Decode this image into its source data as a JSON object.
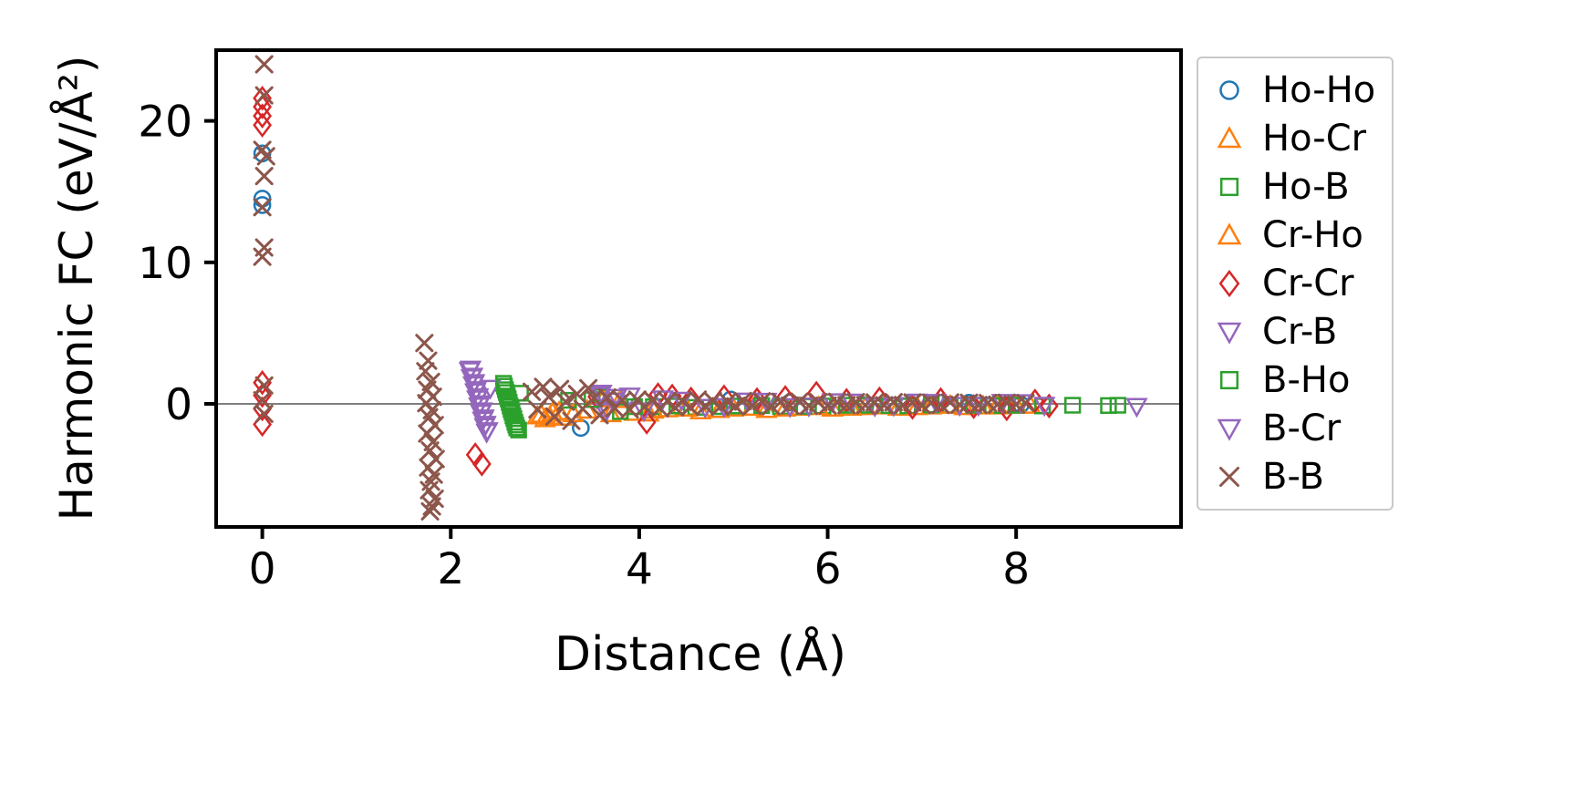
{
  "chart_data": {
    "type": "scatter",
    "title": "",
    "xlabel": "Distance (Å)",
    "ylabel": "Harmonic FC (eV/Å²)",
    "xlim": [
      -0.49,
      9.75
    ],
    "ylim": [
      -8.7,
      25.0
    ],
    "xticks": [
      0,
      2,
      4,
      6,
      8
    ],
    "yticks": [
      0,
      10,
      20
    ],
    "grid": false,
    "zero_line": {
      "y": 0,
      "color": "#7f7f7f",
      "width": 2
    },
    "axis_color": "#000000",
    "background": "#ffffff",
    "legend": {
      "position": "outside-right",
      "border_color": "#c9c9c9",
      "background": "#ffffff"
    },
    "series": [
      {
        "name": "Ho-Ho",
        "marker": "circle",
        "color": "#1f77b4",
        "points": [
          [
            0,
            17.7
          ],
          [
            0,
            14.5
          ],
          [
            0,
            14.05
          ],
          [
            3.38,
            -1.7
          ],
          [
            4.97,
            0.3
          ],
          [
            5.6,
            0.1
          ],
          [
            6.4,
            -0.1
          ],
          [
            7.5,
            0.08
          ],
          [
            8.05,
            -0.05
          ]
        ]
      },
      {
        "name": "Ho-Cr",
        "marker": "triangle-up",
        "color": "#ff7f0e",
        "points": [
          [
            2.92,
            -0.85
          ],
          [
            3.0,
            -1.05
          ],
          [
            3.08,
            -0.6
          ],
          [
            3.18,
            -0.95
          ],
          [
            3.3,
            -0.7
          ],
          [
            3.62,
            0.35
          ],
          [
            3.7,
            -0.7
          ],
          [
            3.95,
            -0.6
          ],
          [
            4.1,
            -0.65
          ],
          [
            4.3,
            -0.35
          ],
          [
            4.65,
            -0.5
          ],
          [
            5.0,
            -0.3
          ],
          [
            5.35,
            -0.4
          ],
          [
            5.7,
            -0.25
          ],
          [
            6.05,
            -0.3
          ],
          [
            6.4,
            -0.2
          ],
          [
            6.75,
            -0.25
          ],
          [
            7.1,
            -0.15
          ],
          [
            7.45,
            -0.2
          ],
          [
            7.8,
            -0.15
          ],
          [
            8.15,
            -0.1
          ]
        ]
      },
      {
        "name": "Ho-B",
        "marker": "square",
        "color": "#2ca02c",
        "points": [
          [
            2.56,
            1.45
          ],
          [
            2.58,
            1.0
          ],
          [
            2.6,
            0.55
          ],
          [
            2.62,
            0.1
          ],
          [
            2.64,
            -0.4
          ],
          [
            2.66,
            -0.85
          ],
          [
            2.68,
            -1.3
          ],
          [
            2.7,
            -1.7
          ],
          [
            2.74,
            0.75
          ],
          [
            3.25,
            0.25
          ],
          [
            3.6,
            0.5
          ],
          [
            3.8,
            -0.55
          ],
          [
            4.15,
            -0.2
          ],
          [
            4.6,
            -0.25
          ],
          [
            5.05,
            -0.15
          ],
          [
            5.5,
            -0.2
          ],
          [
            5.95,
            -0.15
          ],
          [
            6.4,
            -0.1
          ],
          [
            6.85,
            -0.15
          ],
          [
            7.3,
            -0.1
          ],
          [
            7.75,
            -0.12
          ],
          [
            8.28,
            -0.15
          ],
          [
            8.6,
            -0.1
          ]
        ]
      },
      {
        "name": "Cr-Ho",
        "marker": "triangle-up",
        "color": "#ff7f0e",
        "points": [
          [
            2.96,
            -0.75
          ],
          [
            3.05,
            -0.9
          ],
          [
            3.15,
            -0.55
          ],
          [
            3.45,
            -0.45
          ],
          [
            3.8,
            0.3
          ],
          [
            4.15,
            -0.45
          ],
          [
            4.5,
            -0.3
          ],
          [
            4.85,
            -0.4
          ],
          [
            5.2,
            -0.25
          ],
          [
            5.55,
            -0.3
          ],
          [
            5.9,
            -0.2
          ],
          [
            6.25,
            -0.25
          ],
          [
            6.6,
            -0.15
          ],
          [
            6.95,
            -0.2
          ],
          [
            7.3,
            -0.1
          ],
          [
            7.65,
            -0.15
          ],
          [
            8.0,
            -0.1
          ]
        ]
      },
      {
        "name": "Cr-Cr",
        "marker": "diamond",
        "color": "#d62728",
        "points": [
          [
            0,
            21.6
          ],
          [
            0,
            21.0
          ],
          [
            0,
            20.35
          ],
          [
            0,
            19.7
          ],
          [
            0,
            1.5
          ],
          [
            0,
            0.6
          ],
          [
            0,
            -0.35
          ],
          [
            0,
            -1.45
          ],
          [
            2.26,
            -3.6
          ],
          [
            2.33,
            -4.25
          ],
          [
            3.55,
            0.5
          ],
          [
            4.08,
            -1.3
          ],
          [
            4.2,
            0.65
          ],
          [
            4.35,
            0.55
          ],
          [
            4.55,
            0.35
          ],
          [
            4.9,
            0.5
          ],
          [
            5.25,
            0.3
          ],
          [
            5.55,
            0.45
          ],
          [
            5.88,
            0.75
          ],
          [
            6.2,
            0.25
          ],
          [
            6.55,
            0.35
          ],
          [
            6.9,
            -0.25
          ],
          [
            7.2,
            0.3
          ],
          [
            7.55,
            -0.2
          ],
          [
            7.9,
            -0.35
          ],
          [
            8.2,
            0.2
          ],
          [
            8.35,
            -0.15
          ]
        ]
      },
      {
        "name": "Cr-B",
        "marker": "triangle-down",
        "color": "#9467bd",
        "points": [
          [
            2.2,
            2.35
          ],
          [
            2.22,
            1.85
          ],
          [
            2.24,
            1.35
          ],
          [
            2.26,
            0.85
          ],
          [
            2.28,
            0.35
          ],
          [
            2.3,
            -0.15
          ],
          [
            2.32,
            -0.65
          ],
          [
            2.34,
            -1.15
          ],
          [
            2.36,
            -1.6
          ],
          [
            2.38,
            -2.0
          ],
          [
            2.42,
            1.1
          ],
          [
            3.58,
            0.6
          ],
          [
            3.64,
            -0.55
          ],
          [
            3.72,
            0.2
          ],
          [
            3.9,
            0.55
          ],
          [
            4.05,
            -0.5
          ],
          [
            4.25,
            0.35
          ],
          [
            4.7,
            -0.25
          ],
          [
            5.15,
            0.2
          ],
          [
            5.6,
            -0.2
          ],
          [
            6.05,
            0.15
          ],
          [
            6.5,
            -0.15
          ],
          [
            6.95,
            0.12
          ],
          [
            7.4,
            -0.1
          ],
          [
            7.85,
            0.1
          ],
          [
            8.3,
            -0.1
          ]
        ]
      },
      {
        "name": "B-Ho",
        "marker": "square",
        "color": "#2ca02c",
        "points": [
          [
            2.57,
            1.25
          ],
          [
            2.59,
            0.8
          ],
          [
            2.61,
            0.35
          ],
          [
            2.63,
            -0.15
          ],
          [
            2.65,
            -0.6
          ],
          [
            2.67,
            -1.05
          ],
          [
            2.69,
            -1.5
          ],
          [
            2.72,
            -1.85
          ],
          [
            3.5,
            0.3
          ],
          [
            3.95,
            -0.2
          ],
          [
            4.4,
            -0.15
          ],
          [
            4.85,
            -0.2
          ],
          [
            5.3,
            -0.12
          ],
          [
            5.75,
            -0.18
          ],
          [
            6.2,
            -0.1
          ],
          [
            6.65,
            -0.12
          ],
          [
            7.1,
            -0.08
          ],
          [
            7.55,
            -0.1
          ],
          [
            8.0,
            -0.1
          ],
          [
            8.98,
            -0.12
          ],
          [
            9.08,
            -0.1
          ]
        ]
      },
      {
        "name": "B-Cr",
        "marker": "triangle-down",
        "color": "#9467bd",
        "points": [
          [
            2.21,
            2.45
          ],
          [
            2.23,
            1.95
          ],
          [
            2.25,
            1.5
          ],
          [
            2.27,
            1.0
          ],
          [
            2.29,
            0.5
          ],
          [
            2.31,
            0.0
          ],
          [
            2.33,
            -0.5
          ],
          [
            2.35,
            -1.0
          ],
          [
            2.37,
            -1.45
          ],
          [
            2.39,
            -1.9
          ],
          [
            3.6,
            0.75
          ],
          [
            3.66,
            -0.4
          ],
          [
            3.76,
            0.45
          ],
          [
            4.45,
            0.25
          ],
          [
            4.9,
            -0.2
          ],
          [
            5.35,
            0.18
          ],
          [
            5.8,
            -0.15
          ],
          [
            6.25,
            0.12
          ],
          [
            6.7,
            -0.12
          ],
          [
            7.15,
            0.1
          ],
          [
            7.6,
            -0.1
          ],
          [
            8.05,
            0.08
          ],
          [
            9.28,
            -0.18
          ]
        ]
      },
      {
        "name": "B-B",
        "marker": "x",
        "color": "#8c564b",
        "points": [
          [
            0.02,
            24.0
          ],
          [
            0.02,
            21.8
          ],
          [
            0.0,
            17.95
          ],
          [
            0.04,
            17.5
          ],
          [
            0.02,
            16.1
          ],
          [
            0.0,
            13.9
          ],
          [
            0.02,
            11.05
          ],
          [
            0.0,
            10.4
          ],
          [
            0.02,
            1.3
          ],
          [
            0.0,
            0.25
          ],
          [
            0.02,
            -0.7
          ],
          [
            1.72,
            4.3
          ],
          [
            1.76,
            3.05
          ],
          [
            1.73,
            2.3
          ],
          [
            1.79,
            1.55
          ],
          [
            1.75,
            1.0
          ],
          [
            1.81,
            0.5
          ],
          [
            1.74,
            0.05
          ],
          [
            1.8,
            -0.45
          ],
          [
            1.77,
            -0.95
          ],
          [
            1.83,
            -1.5
          ],
          [
            1.75,
            -2.1
          ],
          [
            1.81,
            -2.7
          ],
          [
            1.78,
            -3.3
          ],
          [
            1.84,
            -3.9
          ],
          [
            1.76,
            -4.5
          ],
          [
            1.82,
            -5.0
          ],
          [
            1.79,
            -5.5
          ],
          [
            1.77,
            -6.1
          ],
          [
            1.83,
            -6.7
          ],
          [
            1.8,
            -7.25
          ],
          [
            1.78,
            -7.6
          ],
          [
            2.86,
            0.85
          ],
          [
            2.92,
            -0.4
          ],
          [
            2.98,
            1.2
          ],
          [
            3.04,
            0.5
          ],
          [
            3.1,
            -0.9
          ],
          [
            3.16,
            1.05
          ],
          [
            3.22,
            0.15
          ],
          [
            3.28,
            -1.2
          ],
          [
            3.34,
            0.7
          ],
          [
            3.4,
            -0.35
          ],
          [
            3.46,
            1.1
          ],
          [
            3.52,
            0.4
          ],
          [
            3.58,
            -0.8
          ],
          [
            3.66,
            0.45
          ],
          [
            3.74,
            -0.3
          ],
          [
            3.82,
            0.25
          ],
          [
            3.9,
            -0.4
          ],
          [
            3.98,
            0.3
          ],
          [
            4.06,
            -0.2
          ],
          [
            4.14,
            0.28
          ],
          [
            4.22,
            -0.32
          ],
          [
            4.3,
            0.2
          ],
          [
            4.38,
            -0.26
          ],
          [
            4.46,
            0.18
          ],
          [
            4.54,
            -0.22
          ],
          [
            4.62,
            0.3
          ],
          [
            4.7,
            -0.16
          ],
          [
            4.78,
            0.22
          ],
          [
            4.86,
            -0.2
          ],
          [
            4.94,
            0.16
          ],
          [
            5.02,
            -0.18
          ],
          [
            5.1,
            0.2
          ],
          [
            5.2,
            -0.14
          ],
          [
            5.3,
            0.18
          ],
          [
            5.4,
            -0.16
          ],
          [
            5.5,
            0.14
          ],
          [
            5.6,
            -0.12
          ],
          [
            5.7,
            0.16
          ],
          [
            5.8,
            -0.14
          ],
          [
            5.9,
            0.12
          ],
          [
            6.0,
            -0.12
          ],
          [
            6.1,
            0.14
          ],
          [
            6.2,
            -0.1
          ],
          [
            6.3,
            0.12
          ],
          [
            6.4,
            -0.1
          ],
          [
            6.5,
            0.1
          ],
          [
            6.6,
            -0.1
          ],
          [
            6.7,
            0.12
          ],
          [
            6.8,
            -0.08
          ],
          [
            6.9,
            0.1
          ],
          [
            7.0,
            -0.1
          ],
          [
            7.1,
            0.08
          ],
          [
            7.2,
            -0.08
          ],
          [
            7.3,
            0.1
          ],
          [
            7.4,
            -0.06
          ],
          [
            7.5,
            0.08
          ],
          [
            7.6,
            -0.08
          ],
          [
            7.7,
            0.06
          ],
          [
            7.8,
            -0.06
          ],
          [
            7.9,
            0.08
          ],
          [
            8.0,
            -0.05
          ],
          [
            8.1,
            0.06
          ]
        ]
      }
    ]
  }
}
